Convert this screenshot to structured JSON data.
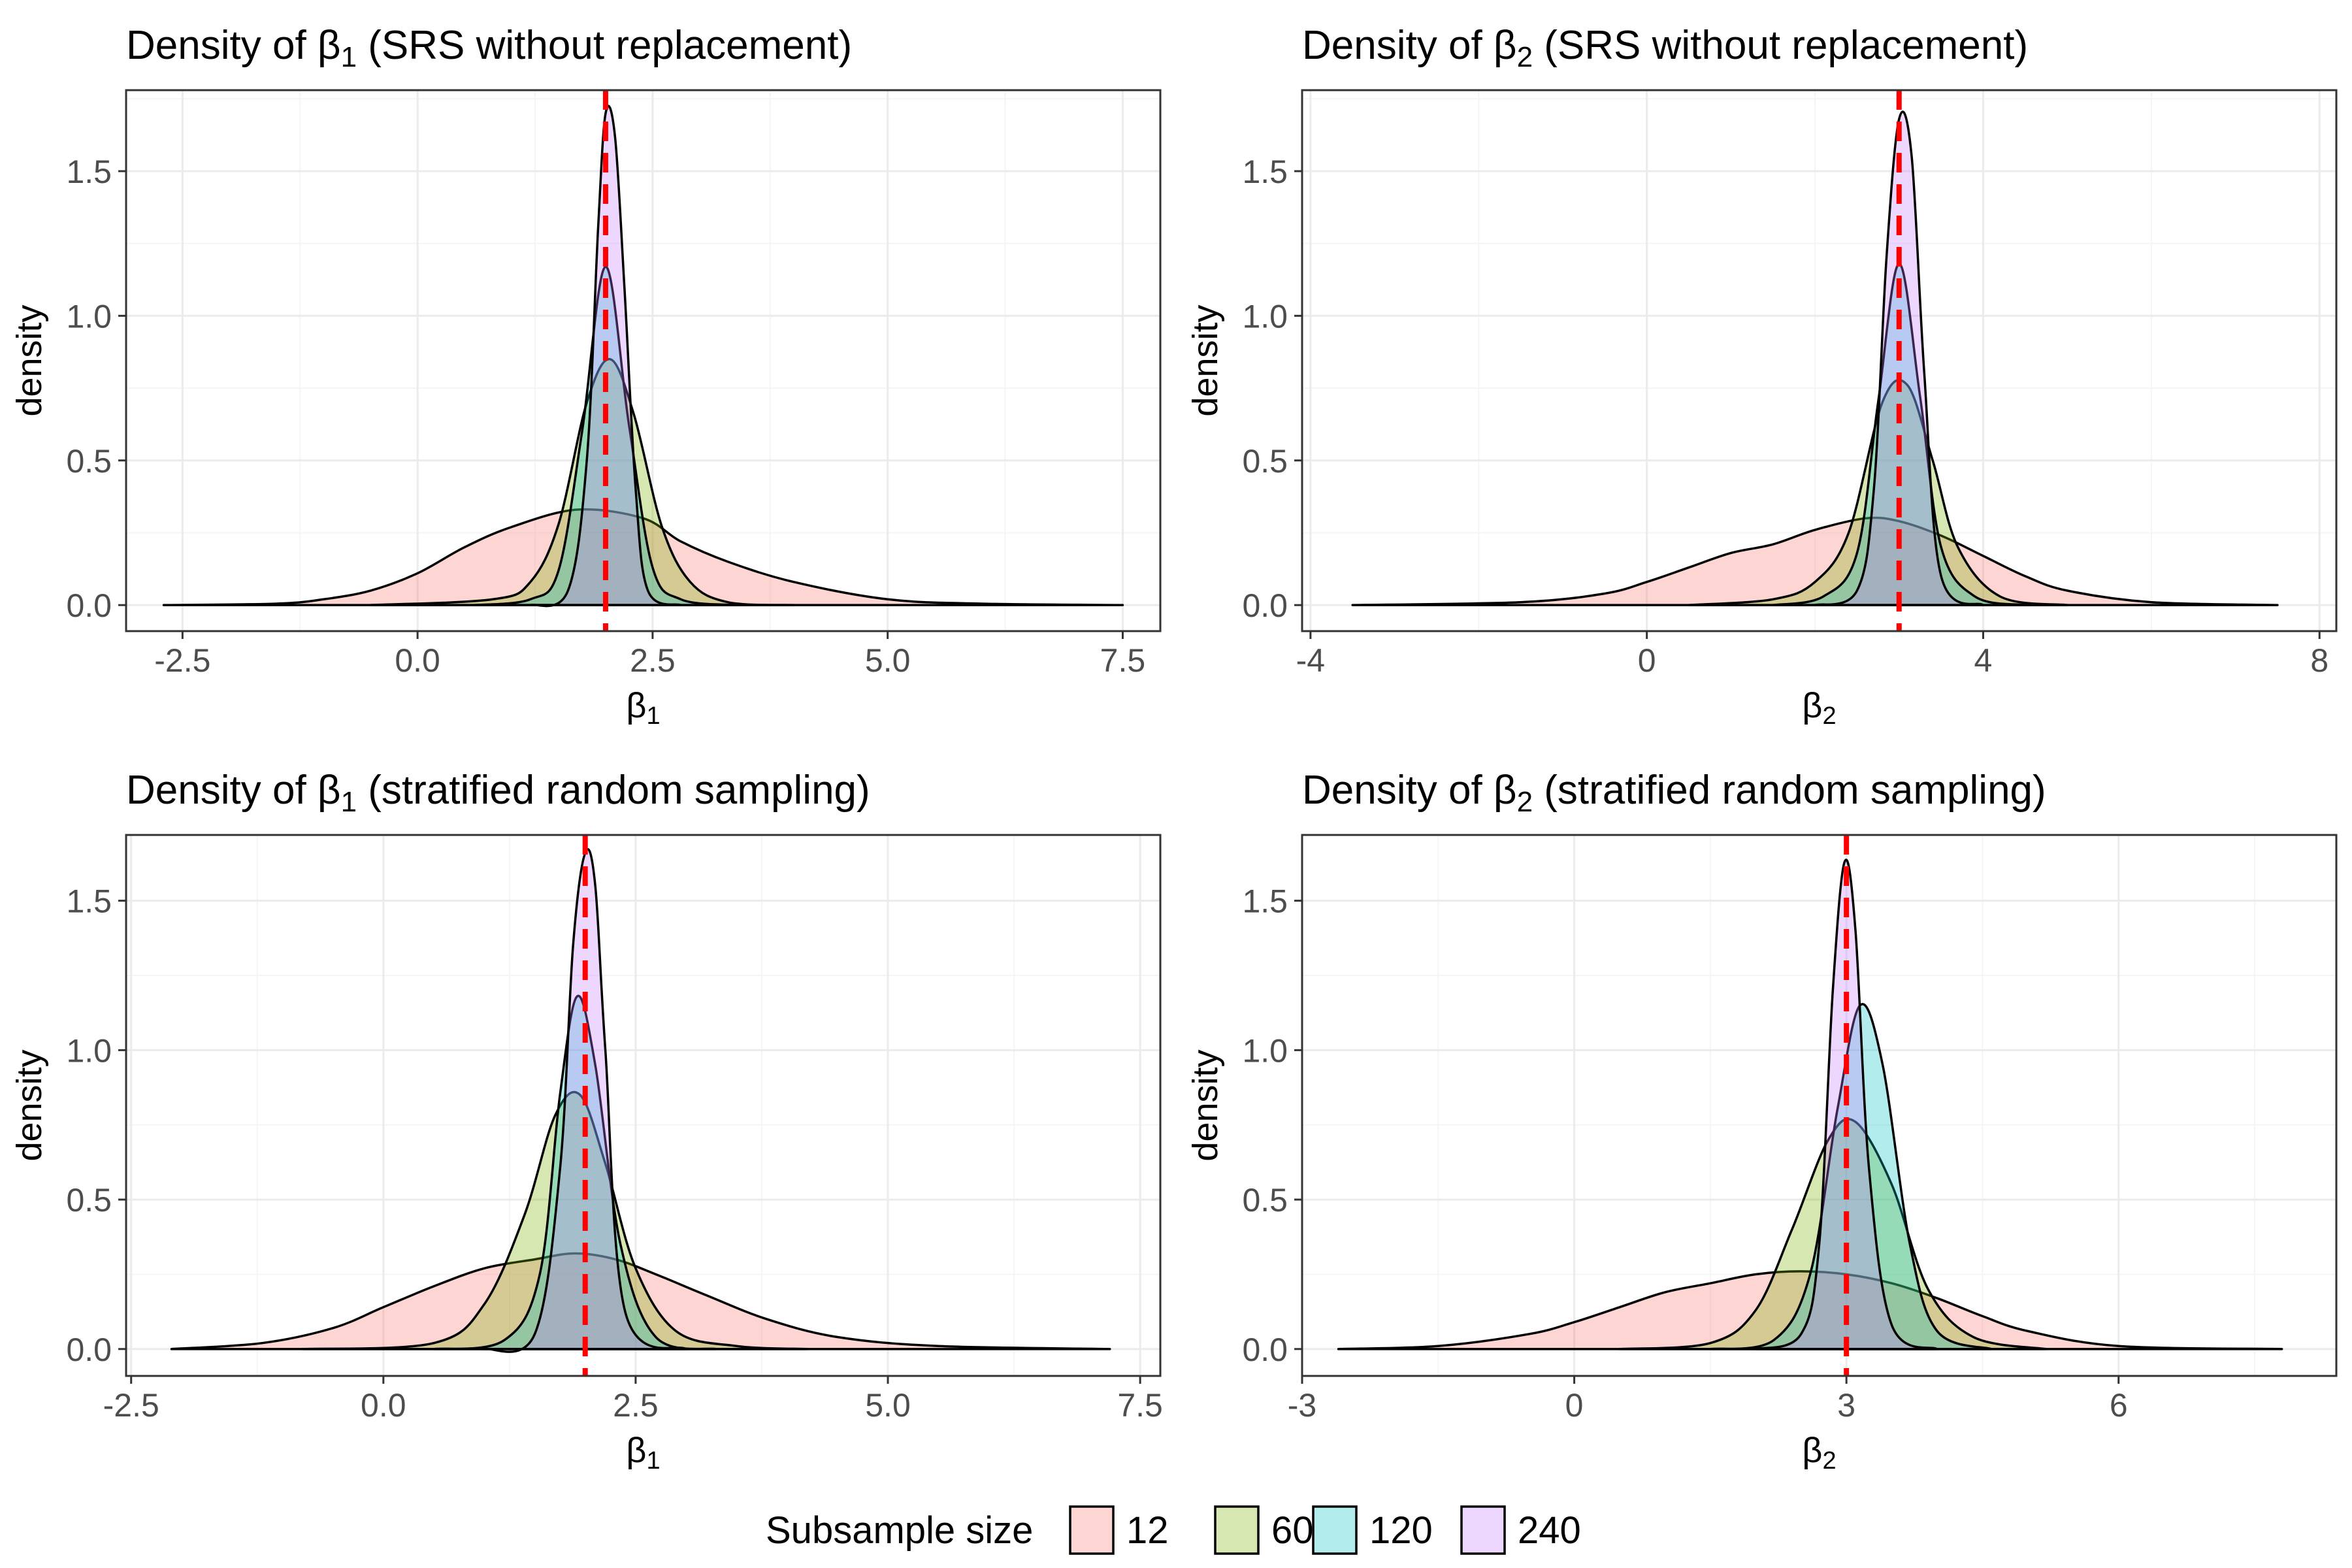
{
  "colors": {
    "true_line": "#ff0000",
    "grid_major": "#ebebeb",
    "grid_minor": "#f5f5f5",
    "panel_border": "#333333"
  },
  "legend": {
    "title": "Subsample size",
    "items": [
      {
        "label": "12",
        "fill": "#f8766d"
      },
      {
        "label": "60",
        "fill": "#7cae00"
      },
      {
        "label": "120",
        "fill": "#00bfc4"
      },
      {
        "label": "240",
        "fill": "#c77cff"
      }
    ]
  },
  "chart_data": [
    {
      "type": "area",
      "title_prefix": "Density of ",
      "title_sym": "β",
      "title_sub": "1",
      "title_suffix": " (SRS without replacement)",
      "xlabel_sym": "β",
      "xlabel_sub": "1",
      "ylabel": "density",
      "xlim": [
        -3.1,
        7.9
      ],
      "ylim": [
        -0.09,
        1.78
      ],
      "xticks": [
        -2.5,
        0,
        2.5,
        5,
        7.5
      ],
      "xtick_labels": [
        "-2.5",
        "0.0",
        "2.5",
        "5.0",
        "7.5"
      ],
      "yticks": [
        0,
        0.5,
        1,
        1.5
      ],
      "ytick_labels": [
        "0.0",
        "0.5",
        "1.0",
        "1.5"
      ],
      "true_value": 2.0,
      "series": [
        {
          "name": "12",
          "x": [
            -2.7,
            -1.5,
            -1.0,
            -0.5,
            0.0,
            0.5,
            1.0,
            1.7,
            2.4,
            2.8,
            3.3,
            4.0,
            5.0,
            6.0,
            7.5
          ],
          "y": [
            0.0,
            0.005,
            0.02,
            0.05,
            0.11,
            0.2,
            0.27,
            0.33,
            0.3,
            0.22,
            0.15,
            0.08,
            0.02,
            0.005,
            0.0
          ]
        },
        {
          "name": "60",
          "x": [
            -0.5,
            0.8,
            1.2,
            1.5,
            1.8,
            2.05,
            2.3,
            2.6,
            2.9,
            3.3,
            4.0
          ],
          "y": [
            0.0,
            0.02,
            0.08,
            0.28,
            0.7,
            0.85,
            0.66,
            0.27,
            0.08,
            0.01,
            0.0
          ]
        },
        {
          "name": "120",
          "x": [
            0.6,
            1.2,
            1.5,
            1.75,
            2.0,
            2.25,
            2.5,
            2.8,
            3.4
          ],
          "y": [
            0.0,
            0.02,
            0.12,
            0.6,
            1.17,
            0.62,
            0.13,
            0.02,
            0.0
          ]
        },
        {
          "name": "240",
          "x": [
            1.2,
            1.6,
            1.8,
            1.92,
            2.0,
            2.1,
            2.2,
            2.32,
            2.45,
            2.8
          ],
          "y": [
            0.0,
            0.05,
            0.5,
            1.3,
            1.7,
            1.62,
            1.1,
            0.4,
            0.05,
            0.0
          ]
        }
      ]
    },
    {
      "type": "area",
      "title_prefix": "Density of ",
      "title_sym": "β",
      "title_sub": "2",
      "title_suffix": " (SRS without replacement)",
      "xlabel_sym": "β",
      "xlabel_sub": "2",
      "ylabel": "density",
      "xlim": [
        -4.1,
        8.2
      ],
      "ylim": [
        -0.09,
        1.78
      ],
      "xticks": [
        -4,
        0,
        4,
        8
      ],
      "xtick_labels": [
        "-4",
        "0",
        "4",
        "8"
      ],
      "yticks": [
        0,
        0.5,
        1,
        1.5
      ],
      "ytick_labels": [
        "0.0",
        "0.5",
        "1.0",
        "1.5"
      ],
      "true_value": 3.0,
      "series": [
        {
          "name": "12",
          "x": [
            -3.5,
            -1.5,
            -0.5,
            0.0,
            0.5,
            1.0,
            1.5,
            2.0,
            2.6,
            3.0,
            3.5,
            4.0,
            4.5,
            5.0,
            6.0,
            7.5
          ],
          "y": [
            0.0,
            0.01,
            0.04,
            0.08,
            0.13,
            0.18,
            0.21,
            0.26,
            0.3,
            0.29,
            0.24,
            0.17,
            0.1,
            0.05,
            0.01,
            0.0
          ]
        },
        {
          "name": "60",
          "x": [
            0.5,
            1.5,
            2.0,
            2.4,
            2.8,
            3.1,
            3.4,
            3.7,
            4.2,
            5.0
          ],
          "y": [
            0.0,
            0.02,
            0.08,
            0.25,
            0.7,
            0.76,
            0.5,
            0.2,
            0.03,
            0.0
          ]
        },
        {
          "name": "120",
          "x": [
            1.5,
            2.1,
            2.5,
            2.75,
            3.0,
            3.25,
            3.5,
            3.9,
            4.5
          ],
          "y": [
            0.0,
            0.03,
            0.18,
            0.7,
            1.18,
            0.72,
            0.2,
            0.03,
            0.0
          ]
        },
        {
          "name": "240",
          "x": [
            2.0,
            2.5,
            2.7,
            2.85,
            3.0,
            3.15,
            3.3,
            3.5,
            4.0
          ],
          "y": [
            0.0,
            0.05,
            0.4,
            1.2,
            1.68,
            1.55,
            0.8,
            0.1,
            0.0
          ]
        }
      ]
    },
    {
      "type": "area",
      "title_prefix": "Density of ",
      "title_sym": "β",
      "title_sub": "1",
      "title_suffix": " (stratified random sampling)",
      "xlabel_sym": "β",
      "xlabel_sub": "1",
      "ylabel": "density",
      "xlim": [
        -2.55,
        7.7
      ],
      "ylim": [
        -0.09,
        1.72
      ],
      "xticks": [
        -2.5,
        0,
        2.5,
        5,
        7.5
      ],
      "xtick_labels": [
        "-2.5",
        "0.0",
        "2.5",
        "5.0",
        "7.5"
      ],
      "yticks": [
        0,
        0.5,
        1,
        1.5
      ],
      "ytick_labels": [
        "0.0",
        "0.5",
        "1.0",
        "1.5"
      ],
      "true_value": 2.0,
      "series": [
        {
          "name": "12",
          "x": [
            -2.1,
            -1.2,
            -0.5,
            0.0,
            0.5,
            1.0,
            1.5,
            1.9,
            2.3,
            2.7,
            3.2,
            3.8,
            4.5,
            5.5,
            7.2
          ],
          "y": [
            0.0,
            0.02,
            0.07,
            0.14,
            0.21,
            0.27,
            0.3,
            0.32,
            0.3,
            0.25,
            0.18,
            0.1,
            0.04,
            0.01,
            0.0
          ]
        },
        {
          "name": "60",
          "x": [
            -0.8,
            0.5,
            1.0,
            1.4,
            1.7,
            1.95,
            2.2,
            2.5,
            2.9,
            3.5,
            4.2
          ],
          "y": [
            0.0,
            0.02,
            0.15,
            0.45,
            0.78,
            0.85,
            0.62,
            0.27,
            0.06,
            0.01,
            0.0
          ]
        },
        {
          "name": "120",
          "x": [
            0.5,
            1.2,
            1.55,
            1.75,
            1.92,
            2.1,
            2.35,
            2.7,
            3.3
          ],
          "y": [
            0.0,
            0.03,
            0.25,
            0.85,
            1.18,
            0.95,
            0.35,
            0.04,
            0.0
          ]
        },
        {
          "name": "240",
          "x": [
            1.0,
            1.5,
            1.75,
            1.88,
            2.0,
            2.1,
            2.2,
            2.4,
            3.0
          ],
          "y": [
            0.0,
            0.05,
            0.6,
            1.35,
            1.66,
            1.55,
            1.0,
            0.12,
            0.0
          ]
        }
      ]
    },
    {
      "type": "area",
      "title_prefix": "Density of ",
      "title_sym": "β",
      "title_sub": "2",
      "title_suffix": " (stratified random sampling)",
      "xlabel_sym": "β",
      "xlabel_sub": "2",
      "ylabel": "density",
      "xlim": [
        -3.0,
        8.4
      ],
      "ylim": [
        -0.09,
        1.72
      ],
      "xticks": [
        -3,
        0,
        3,
        6
      ],
      "xtick_labels": [
        "-3",
        "0",
        "3",
        "6"
      ],
      "yticks": [
        0,
        0.5,
        1,
        1.5
      ],
      "ytick_labels": [
        "0.0",
        "0.5",
        "1.0",
        "1.5"
      ],
      "true_value": 3.0,
      "series": [
        {
          "name": "12",
          "x": [
            -2.6,
            -1.5,
            -0.5,
            0.0,
            0.5,
            1.0,
            1.5,
            2.0,
            2.5,
            3.0,
            3.5,
            4.0,
            4.5,
            5.0,
            6.0,
            7.8
          ],
          "y": [
            0.0,
            0.01,
            0.05,
            0.09,
            0.14,
            0.19,
            0.22,
            0.25,
            0.26,
            0.25,
            0.22,
            0.17,
            0.11,
            0.06,
            0.01,
            0.0
          ]
        },
        {
          "name": "60",
          "x": [
            0.5,
            1.5,
            2.0,
            2.4,
            2.8,
            3.1,
            3.5,
            3.9,
            4.4,
            5.2
          ],
          "y": [
            0.0,
            0.02,
            0.13,
            0.4,
            0.7,
            0.76,
            0.55,
            0.2,
            0.04,
            0.0
          ]
        },
        {
          "name": "120",
          "x": [
            1.5,
            2.2,
            2.6,
            2.9,
            3.15,
            3.4,
            3.7,
            4.0,
            4.6
          ],
          "y": [
            0.0,
            0.03,
            0.25,
            0.8,
            1.15,
            0.95,
            0.35,
            0.06,
            0.0
          ]
        },
        {
          "name": "240",
          "x": [
            2.0,
            2.5,
            2.7,
            2.85,
            2.98,
            3.1,
            3.25,
            3.5,
            4.0
          ],
          "y": [
            0.0,
            0.05,
            0.35,
            1.2,
            1.63,
            1.4,
            0.6,
            0.08,
            0.0
          ]
        }
      ]
    }
  ]
}
